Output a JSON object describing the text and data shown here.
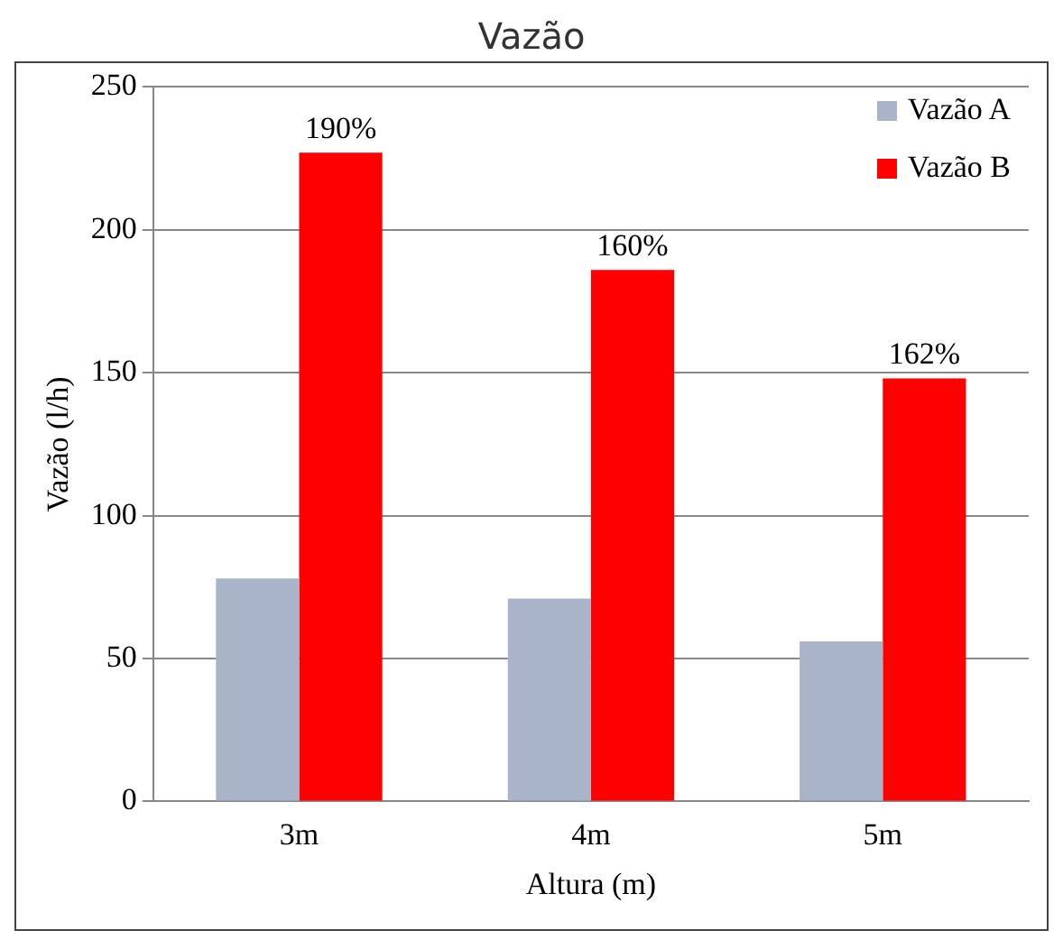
{
  "chart_data": {
    "type": "bar",
    "title": "Vazão",
    "xlabel": "Altura (m)",
    "ylabel": "Vazão (l/h)",
    "categories": [
      "3m",
      "4m",
      "5m"
    ],
    "series": [
      {
        "name": "Vazão A",
        "color": "#a9b4c8",
        "values": [
          78,
          71,
          56
        ]
      },
      {
        "name": "Vazão B",
        "color": "#ff0000",
        "values": [
          227,
          186,
          148
        ]
      }
    ],
    "ylim": [
      0,
      250
    ],
    "yticks": [
      0,
      50,
      100,
      150,
      200,
      250
    ],
    "grid": "y",
    "legend": "top right",
    "annotations": [
      {
        "text": "190%",
        "x": "3m",
        "y": 227
      },
      {
        "text": "160%",
        "x": "4m",
        "y": 186
      },
      {
        "text": "162%",
        "x": "5m",
        "y": 148
      }
    ]
  }
}
